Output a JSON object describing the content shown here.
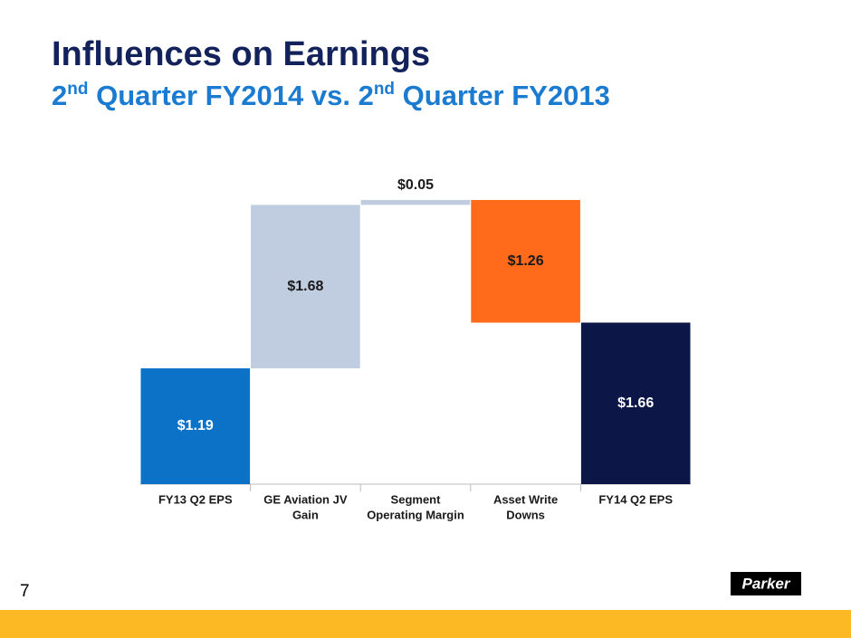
{
  "chart_data": {
    "type": "waterfall",
    "title": "Influences on Earnings",
    "subtitle_parts": [
      {
        "text": "2"
      },
      {
        "text": "nd",
        "sup": true
      },
      {
        "text": " Quarter FY2014 vs. 2"
      },
      {
        "text": "nd",
        "sup": true
      },
      {
        "text": " Quarter FY2013"
      }
    ],
    "categories": [
      [
        "FY13 Q2 EPS"
      ],
      [
        "GE Aviation JV",
        "Gain"
      ],
      [
        "Segment",
        "Operating Margin"
      ],
      [
        "Asset Write",
        "Downs"
      ],
      [
        "FY14 Q2 EPS"
      ]
    ],
    "values": [
      1.19,
      1.68,
      0.05,
      -1.26,
      1.66
    ],
    "value_labels": [
      "$1.19",
      "$1.68",
      "$0.05",
      "$1.26",
      "$1.66"
    ],
    "colors": [
      "#0b72c7",
      "#c0cce0",
      "#c0cce0",
      "#ff6b1a",
      "#0c1748"
    ],
    "label_colors": [
      "#ffffff",
      "#1a1a1a",
      "#1a1a1a",
      "#1a1a1a",
      "#ffffff"
    ]
  },
  "page_number": "7",
  "logo": "Parker"
}
